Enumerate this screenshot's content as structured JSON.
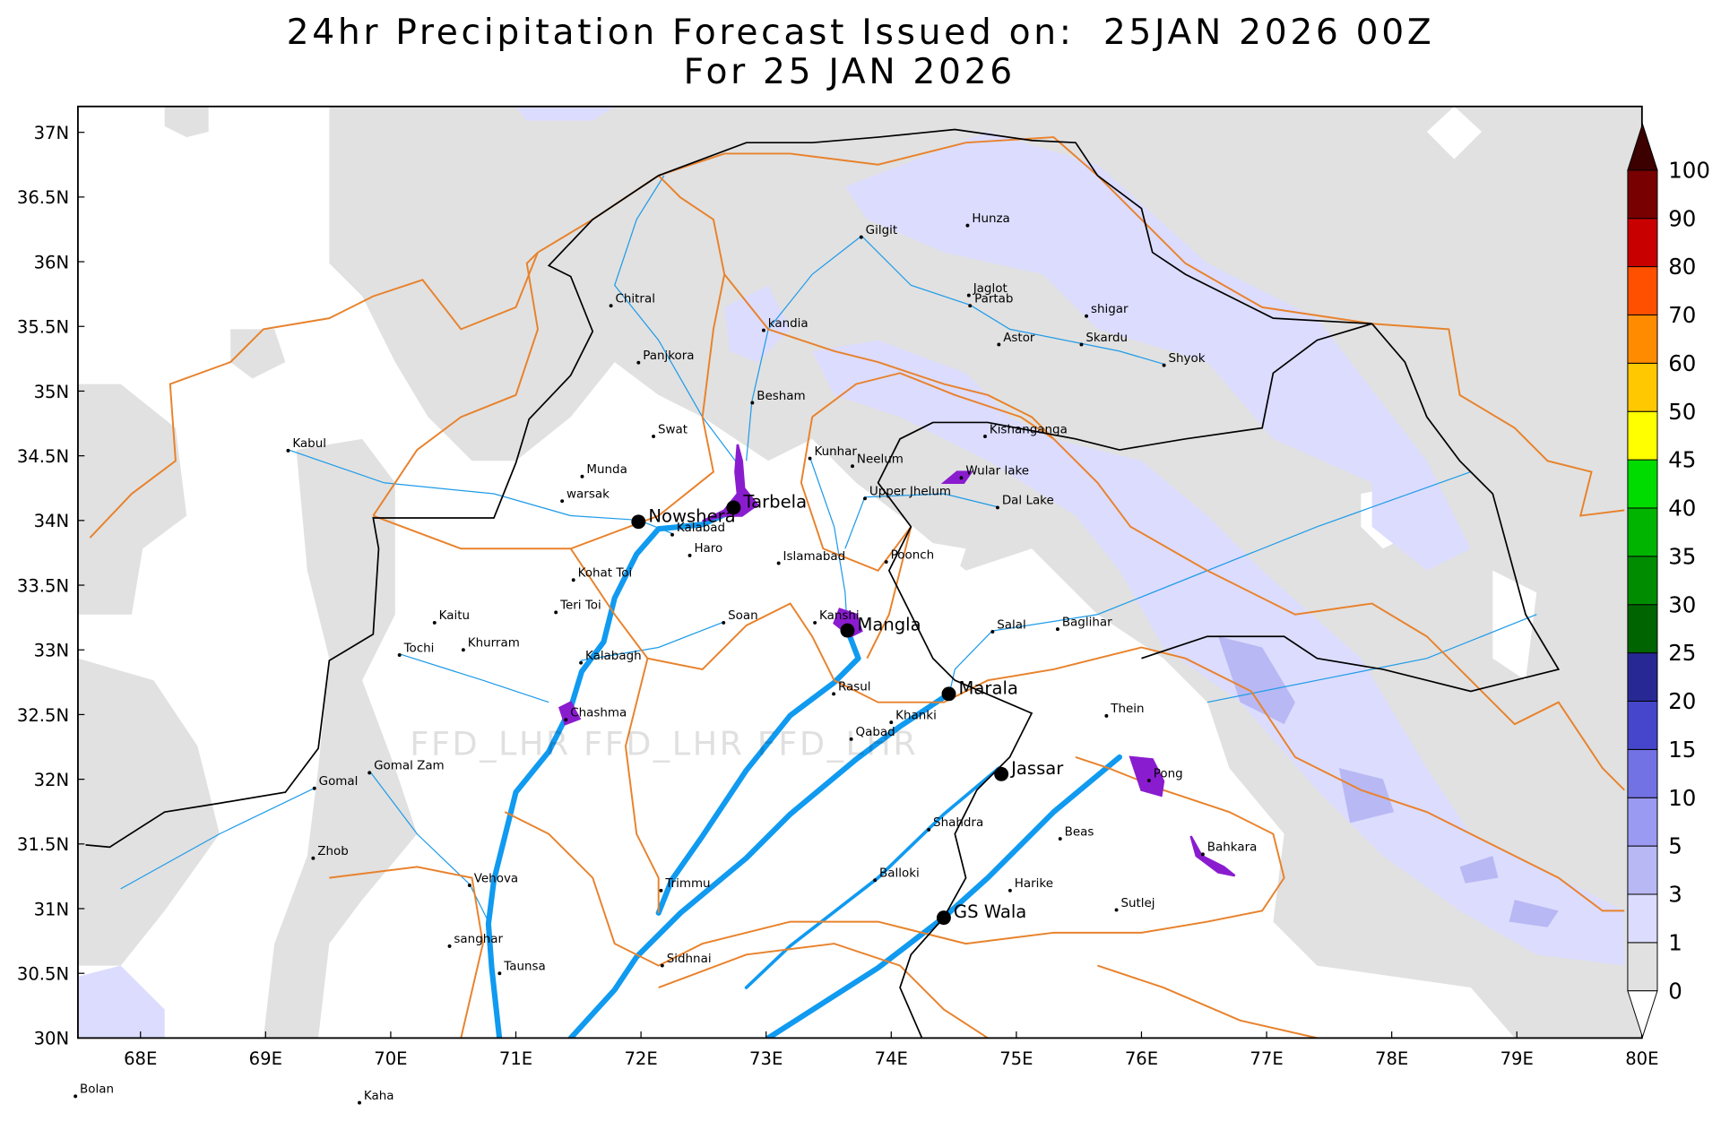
{
  "title": "24hr Precipitation Forecast Issued on:  25JAN 2026 00Z",
  "subtitle": "For 25 JAN 2026",
  "watermark": "FFD_LHR FFD_LHR FFD_LHR",
  "map": {
    "xlim": [
      67.5,
      80
    ],
    "ylim": [
      30,
      37.2
    ],
    "xticks": [
      {
        "value": 68,
        "label": "68E"
      },
      {
        "value": 69,
        "label": "69E"
      },
      {
        "value": 70,
        "label": "70E"
      },
      {
        "value": 71,
        "label": "71E"
      },
      {
        "value": 72,
        "label": "72E"
      },
      {
        "value": 73,
        "label": "73E"
      },
      {
        "value": 74,
        "label": "74E"
      },
      {
        "value": 75,
        "label": "75E"
      },
      {
        "value": 76,
        "label": "76E"
      },
      {
        "value": 77,
        "label": "77E"
      },
      {
        "value": 78,
        "label": "78E"
      },
      {
        "value": 79,
        "label": "79E"
      },
      {
        "value": 80,
        "label": "80E"
      }
    ],
    "yticks": [
      {
        "value": 30,
        "label": "30N"
      },
      {
        "value": 30.5,
        "label": "30.5N"
      },
      {
        "value": 31,
        "label": "31N"
      },
      {
        "value": 31.5,
        "label": "31.5N"
      },
      {
        "value": 32,
        "label": "32N"
      },
      {
        "value": 32.5,
        "label": "32.5N"
      },
      {
        "value": 33,
        "label": "33N"
      },
      {
        "value": 33.5,
        "label": "33.5N"
      },
      {
        "value": 34,
        "label": "34N"
      },
      {
        "value": 34.5,
        "label": "34.5N"
      },
      {
        "value": 35,
        "label": "35N"
      },
      {
        "value": 35.5,
        "label": "35.5N"
      },
      {
        "value": 36,
        "label": "36N"
      },
      {
        "value": 36.5,
        "label": "36.5N"
      },
      {
        "value": 37,
        "label": "37N"
      }
    ]
  },
  "places": [
    {
      "name": "Kabul",
      "lon": 69.18,
      "lat": 34.54
    },
    {
      "name": "Chitral",
      "lon": 71.76,
      "lat": 35.66
    },
    {
      "name": "Panjkora",
      "lon": 71.98,
      "lat": 35.22
    },
    {
      "name": "Swat",
      "lon": 72.1,
      "lat": 34.65
    },
    {
      "name": "Munda",
      "lon": 71.53,
      "lat": 34.34
    },
    {
      "name": "warsak",
      "lon": 71.37,
      "lat": 34.15
    },
    {
      "name": "Nowshera",
      "lon": 71.98,
      "lat": 33.99,
      "reservoir": true
    },
    {
      "name": "Kalabad",
      "lon": 72.25,
      "lat": 33.89
    },
    {
      "name": "Haro",
      "lon": 72.39,
      "lat": 33.73
    },
    {
      "name": "Tarbela",
      "lon": 72.74,
      "lat": 34.1,
      "reservoir": true
    },
    {
      "name": "kandia",
      "lon": 72.98,
      "lat": 35.47
    },
    {
      "name": "Besham",
      "lon": 72.89,
      "lat": 34.91
    },
    {
      "name": "Gilgit",
      "lon": 73.76,
      "lat": 36.19
    },
    {
      "name": "Hunza",
      "lon": 74.61,
      "lat": 36.28
    },
    {
      "name": "Jaglot",
      "lon": 74.62,
      "lat": 35.74
    },
    {
      "name": "Partab",
      "lon": 74.63,
      "lat": 35.66
    },
    {
      "name": "shigar",
      "lon": 75.56,
      "lat": 35.58
    },
    {
      "name": "Skardu",
      "lon": 75.52,
      "lat": 35.36
    },
    {
      "name": "Astor",
      "lon": 74.86,
      "lat": 35.36
    },
    {
      "name": "Shyok",
      "lon": 76.18,
      "lat": 35.2
    },
    {
      "name": "Kunhar",
      "lon": 73.35,
      "lat": 34.48
    },
    {
      "name": "Neelum",
      "lon": 73.69,
      "lat": 34.42
    },
    {
      "name": "Kishanganga",
      "lon": 74.75,
      "lat": 34.65
    },
    {
      "name": "Wular lake",
      "lon": 74.56,
      "lat": 34.33
    },
    {
      "name": "Upper Jhelum",
      "lon": 73.79,
      "lat": 34.17
    },
    {
      "name": "Dal Lake",
      "lon": 74.85,
      "lat": 34.1
    },
    {
      "name": "Islamabad",
      "lon": 73.1,
      "lat": 33.67
    },
    {
      "name": "Poonch",
      "lon": 73.96,
      "lat": 33.68
    },
    {
      "name": "Kohat Toi",
      "lon": 71.46,
      "lat": 33.54
    },
    {
      "name": "Teri Toi",
      "lon": 71.32,
      "lat": 33.29
    },
    {
      "name": "Soan",
      "lon": 72.66,
      "lat": 33.21
    },
    {
      "name": "Kaitu",
      "lon": 70.35,
      "lat": 33.21
    },
    {
      "name": "Khurram",
      "lon": 70.58,
      "lat": 33.0
    },
    {
      "name": "Tochi",
      "lon": 70.07,
      "lat": 32.96
    },
    {
      "name": "Kalabagh",
      "lon": 71.52,
      "lat": 32.9
    },
    {
      "name": "Kanshi",
      "lon": 73.39,
      "lat": 33.21
    },
    {
      "name": "Mangla",
      "lon": 73.65,
      "lat": 33.15,
      "reservoir": true
    },
    {
      "name": "Salal",
      "lon": 74.81,
      "lat": 33.14
    },
    {
      "name": "Baglihar",
      "lon": 75.33,
      "lat": 33.16
    },
    {
      "name": "Rasul",
      "lon": 73.54,
      "lat": 32.66
    },
    {
      "name": "Marala",
      "lon": 74.46,
      "lat": 32.66,
      "reservoir": true
    },
    {
      "name": "Chashma",
      "lon": 71.4,
      "lat": 32.46
    },
    {
      "name": "Thein",
      "lon": 75.72,
      "lat": 32.49
    },
    {
      "name": "Khanki",
      "lon": 74.0,
      "lat": 32.44
    },
    {
      "name": "Qabad",
      "lon": 73.68,
      "lat": 32.31
    },
    {
      "name": "Gomal Zam",
      "lon": 69.83,
      "lat": 32.05
    },
    {
      "name": "Gomal",
      "lon": 69.39,
      "lat": 31.93
    },
    {
      "name": "Jassar",
      "lon": 74.88,
      "lat": 32.04,
      "reservoir": true
    },
    {
      "name": "Pong",
      "lon": 76.06,
      "lat": 31.99
    },
    {
      "name": "Zhob",
      "lon": 69.38,
      "lat": 31.39
    },
    {
      "name": "Shahdra",
      "lon": 74.3,
      "lat": 31.61
    },
    {
      "name": "Beas",
      "lon": 75.35,
      "lat": 31.54
    },
    {
      "name": "Bahkara",
      "lon": 76.49,
      "lat": 31.42
    },
    {
      "name": "Vehova",
      "lon": 70.63,
      "lat": 31.18
    },
    {
      "name": "Balloki",
      "lon": 73.87,
      "lat": 31.22
    },
    {
      "name": "Trimmu",
      "lon": 72.16,
      "lat": 31.14
    },
    {
      "name": "Harike",
      "lon": 74.95,
      "lat": 31.14
    },
    {
      "name": "Sutlej",
      "lon": 75.8,
      "lat": 30.99
    },
    {
      "name": "GS Wala",
      "lon": 74.42,
      "lat": 30.93,
      "reservoir": true
    },
    {
      "name": "sanghar",
      "lon": 70.47,
      "lat": 30.71
    },
    {
      "name": "Taunsa",
      "lon": 70.87,
      "lat": 30.5
    },
    {
      "name": "Sidhnai",
      "lon": 72.17,
      "lat": 30.56
    },
    {
      "name": "Bolan",
      "lon": 67.48,
      "lat": 29.55
    },
    {
      "name": "Kaha",
      "lon": 69.75,
      "lat": 29.5
    }
  ],
  "colorbar": {
    "levels": [
      0,
      1,
      3,
      5,
      10,
      15,
      20,
      25,
      30,
      35,
      40,
      45,
      50,
      60,
      70,
      80,
      90,
      100
    ],
    "colors": [
      "#e1e1e1",
      "#dcdcfe",
      "#b8b8f4",
      "#9a9af2",
      "#7272e4",
      "#4646cc",
      "#282894",
      "#006400",
      "#008c00",
      "#00b400",
      "#00dc00",
      "#ffff00",
      "#ffc800",
      "#ff8c00",
      "#ff5000",
      "#c80000",
      "#780000"
    ],
    "under_color": "#ffffff",
    "over_color": "#3c0000"
  }
}
